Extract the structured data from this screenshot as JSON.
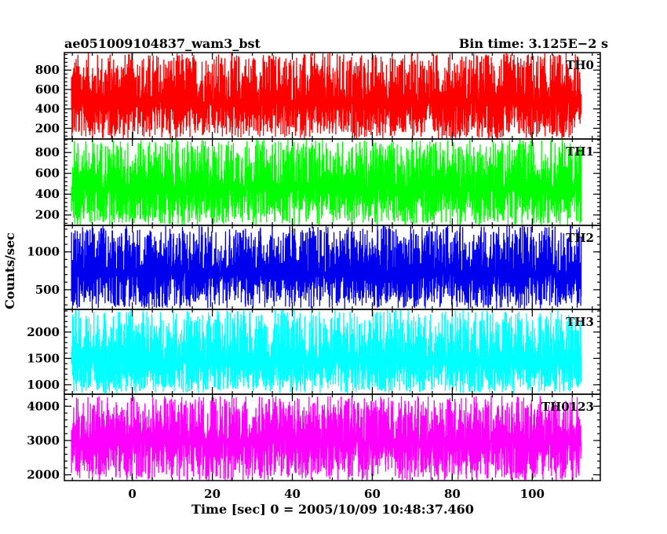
{
  "chart_data": {
    "type": "line",
    "title_left": "ae051009104837_wam3_bst",
    "title_right": "Bin time: 3.125E−2 s",
    "xlabel": "Time [sec] 0 = 2005/10/09 10:48:37.460",
    "ylabel": "Counts/sec",
    "xlim": [
      -17,
      117
    ],
    "x_ticks": [
      0,
      20,
      40,
      60,
      80,
      100
    ],
    "x_tick_labels": [
      "0",
      "20",
      "40",
      "60",
      "80",
      "100"
    ],
    "data_range_x": [
      -15.2,
      112.2
    ],
    "panels": [
      {
        "name": "TH0",
        "color": "#ff0000",
        "ylim": [
          90,
          980
        ],
        "y_ticks": [
          200,
          400,
          600,
          800
        ],
        "y_tick_labels": [
          "200",
          "400",
          "600",
          "800"
        ],
        "band": {
          "mean": 465,
          "low": 90,
          "high": 980
        }
      },
      {
        "name": "TH1",
        "color": "#00ff00",
        "ylim": [
          100,
          930
        ],
        "y_ticks": [
          200,
          400,
          600,
          800
        ],
        "y_tick_labels": [
          "200",
          "400",
          "600",
          "800"
        ],
        "band": {
          "mean": 460,
          "low": 100,
          "high": 930
        }
      },
      {
        "name": "TH2",
        "color": "#0000ee",
        "ylim": [
          240,
          1350
        ],
        "y_ticks": [
          500,
          1000
        ],
        "y_tick_labels": [
          "500",
          "1000"
        ],
        "band": {
          "mean": 720,
          "low": 250,
          "high": 1350
        }
      },
      {
        "name": "TH3",
        "color": "#00ffff",
        "ylim": [
          820,
          2430
        ],
        "y_ticks": [
          1000,
          1500,
          2000
        ],
        "y_tick_labels": [
          "1000",
          "1500",
          "2000"
        ],
        "band": {
          "mean": 1450,
          "low": 830,
          "high": 2430
        }
      },
      {
        "name": "TH0123",
        "color": "#ff00ff",
        "ylim": [
          1830,
          4350
        ],
        "y_ticks": [
          2000,
          3000,
          4000
        ],
        "y_tick_labels": [
          "2000",
          "3000",
          "4000"
        ],
        "band": {
          "mean": 2960,
          "low": 1830,
          "high": 4300
        }
      }
    ]
  }
}
